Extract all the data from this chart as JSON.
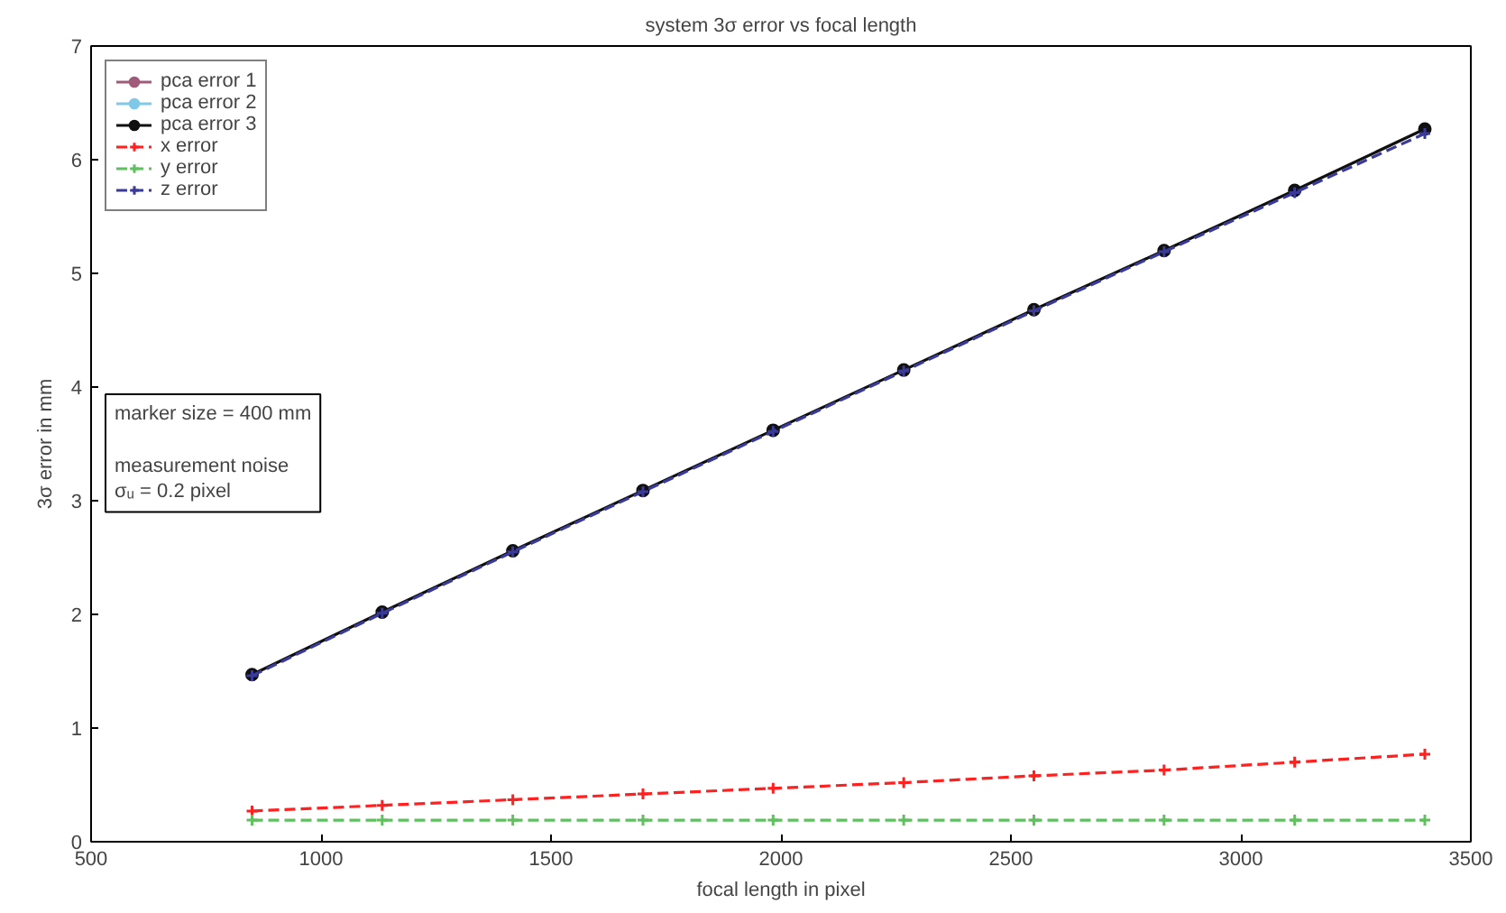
{
  "chart_data": {
    "type": "line",
    "title": "system 3σ error vs focal length",
    "xlabel": "focal length in pixel",
    "ylabel": "3σ error in mm",
    "x": [
      850,
      1133,
      1417,
      1700,
      1983,
      2267,
      2550,
      2833,
      3117,
      3400
    ],
    "series": [
      {
        "name": "pca error 1",
        "color": "#a05a7a",
        "marker": "circle",
        "line_style": "solid",
        "values": [
          null,
          null,
          null,
          null,
          null,
          null,
          null,
          null,
          null,
          null
        ]
      },
      {
        "name": "pca error 2",
        "color": "#80c8e8",
        "marker": "circle",
        "line_style": "solid",
        "values": [
          null,
          null,
          null,
          null,
          null,
          null,
          null,
          null,
          null,
          null
        ]
      },
      {
        "name": "pca error 3",
        "color": "#101010",
        "marker": "circle",
        "line_style": "solid",
        "values": [
          1.47,
          2.02,
          2.56,
          3.09,
          3.62,
          4.15,
          4.68,
          5.2,
          5.73,
          6.27
        ]
      },
      {
        "name": "x error",
        "color": "#ff2020",
        "marker": "cross",
        "line_style": "dashed",
        "values": [
          0.27,
          0.32,
          0.37,
          0.42,
          0.47,
          0.52,
          0.58,
          0.63,
          0.7,
          0.77
        ]
      },
      {
        "name": "y error",
        "color": "#60c060",
        "marker": "cross",
        "line_style": "dashed",
        "values": [
          0.19,
          0.19,
          0.19,
          0.19,
          0.19,
          0.19,
          0.19,
          0.19,
          0.19,
          0.19
        ]
      },
      {
        "name": "z error",
        "color": "#3a3a9a",
        "marker": "cross",
        "line_style": "dashed",
        "values": [
          1.46,
          2.01,
          2.55,
          3.08,
          3.61,
          4.14,
          4.67,
          5.19,
          5.71,
          6.23
        ]
      }
    ],
    "xlim": [
      500,
      3500
    ],
    "xticks": [
      500,
      1000,
      1500,
      2000,
      2500,
      3000,
      3500
    ],
    "ylim": [
      0,
      7
    ],
    "yticks": [
      0,
      1,
      2,
      3,
      4,
      5,
      6,
      7
    ],
    "grid": false,
    "legend": "top left",
    "annotations": [
      "marker size = 400 mm\n\nmeasurement noise\nσᵤ = 0.2 pixel"
    ]
  }
}
